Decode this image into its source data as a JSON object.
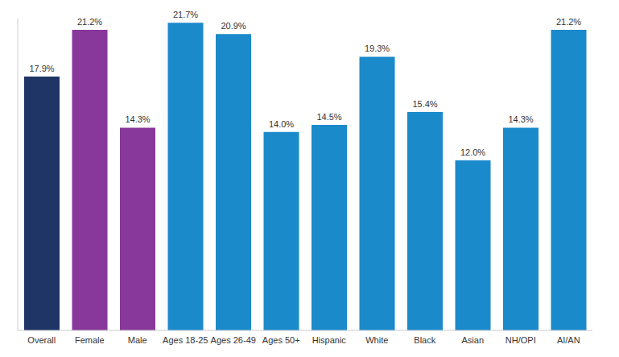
{
  "chart_data": {
    "type": "bar",
    "categories": [
      "Overall",
      "Female",
      "Male",
      "Ages 18-25",
      "Ages 26-49",
      "Ages 50+",
      "Hispanic",
      "White",
      "Black",
      "Asian",
      "NH/OPI",
      "AI/AN"
    ],
    "values": [
      17.9,
      21.2,
      14.3,
      21.7,
      20.9,
      14.0,
      14.5,
      19.3,
      15.4,
      12.0,
      14.3,
      21.2
    ],
    "value_labels": [
      "17.9%",
      "21.2%",
      "14.3%",
      "21.7%",
      "20.9%",
      "14.0%",
      "14.5%",
      "19.3%",
      "15.4%",
      "12.0%",
      "14.3%",
      "21.2%"
    ],
    "colors": [
      "#1f3566",
      "#87389a",
      "#87389a",
      "#1a8acb",
      "#1a8acb",
      "#1a8acb",
      "#1a8acb",
      "#1a8acb",
      "#1a8acb",
      "#1a8acb",
      "#1a8acb",
      "#1a8acb"
    ],
    "ylim": [
      0,
      22
    ],
    "grid": false,
    "data_labels": true,
    "tick_labels": "x"
  }
}
